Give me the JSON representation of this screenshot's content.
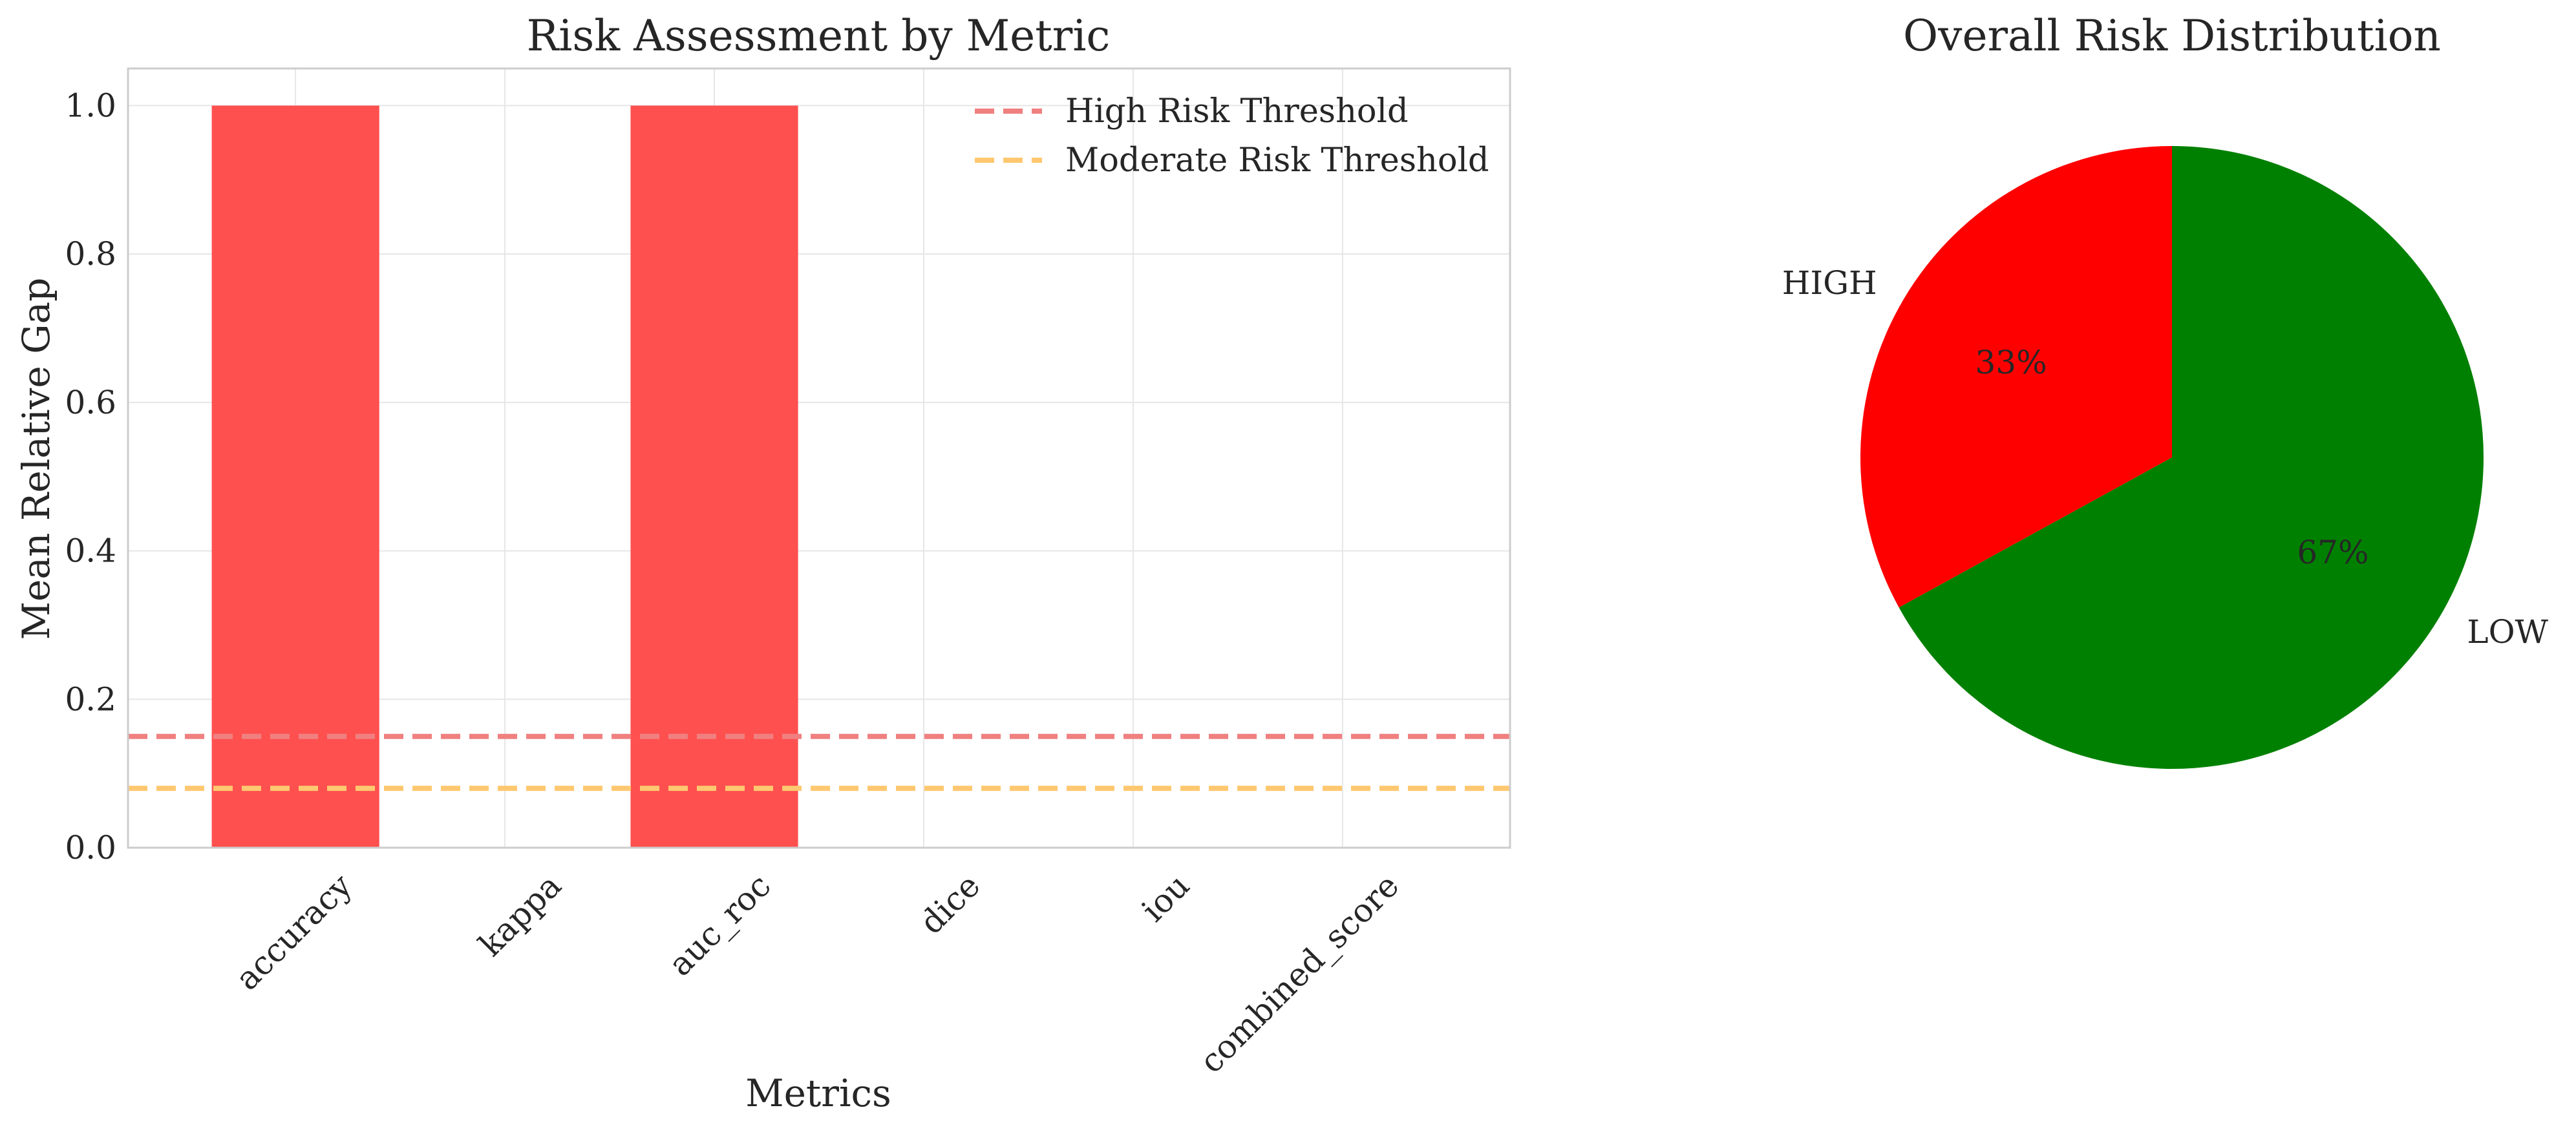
{
  "chart_data": [
    {
      "type": "bar",
      "title": "Risk Assessment by Metric",
      "xlabel": "Metrics",
      "ylabel": "Mean Relative Gap",
      "categories": [
        "accuracy",
        "kappa",
        "auc_roc",
        "dice",
        "iou",
        "combined_score"
      ],
      "values": [
        1.0,
        0.0,
        1.0,
        0.0,
        0.0,
        0.0
      ],
      "ylim": [
        0,
        1.05
      ],
      "yticks": [
        "0.0",
        "0.2",
        "0.4",
        "0.6",
        "0.8",
        "1.0"
      ],
      "grid": true,
      "bar_color": "#ff4d4d",
      "thresholds": [
        {
          "name": "High Risk Threshold",
          "value": 0.15,
          "color": "#f08080"
        },
        {
          "name": "Moderate Risk Threshold",
          "value": 0.08,
          "color": "#ffc870"
        }
      ],
      "legend_position": "top-right"
    },
    {
      "type": "pie",
      "title": "Overall Risk Distribution",
      "slices": [
        {
          "label": "HIGH",
          "value": 33,
          "pct_label": "33%",
          "color": "#ff0000"
        },
        {
          "label": "LOW",
          "value": 67,
          "pct_label": "67%",
          "color": "#008000"
        }
      ]
    }
  ]
}
